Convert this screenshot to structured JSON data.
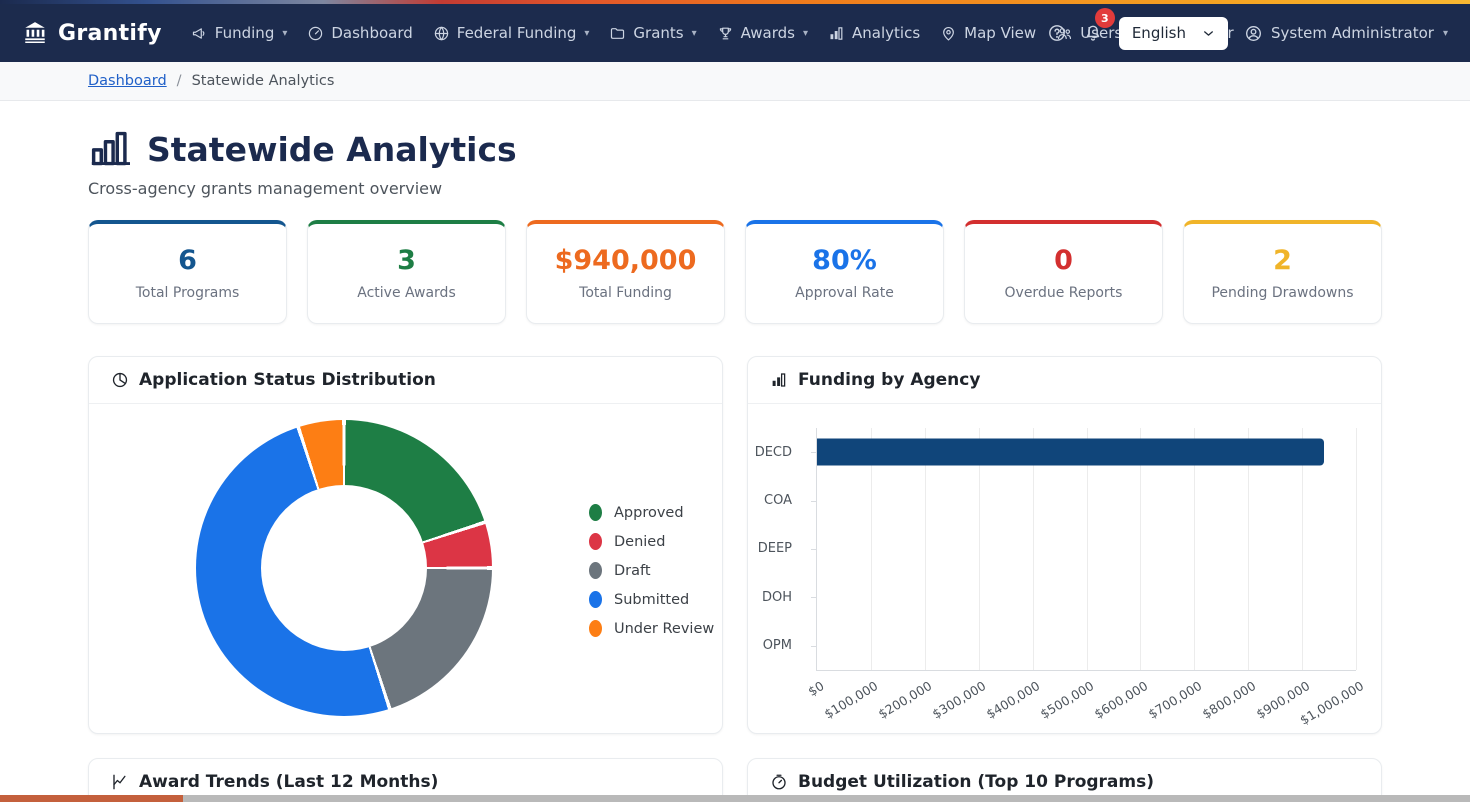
{
  "colors": {
    "navbar_bg": "#1c2b4d",
    "brand_navy": "#1b2a4e",
    "link_blue": "#2060c8",
    "badge_red": "#e23b3b",
    "bar_navy": "#10457a",
    "scroll_thumb": "#c4603c"
  },
  "topbar": {
    "brand": "Grantify",
    "nav": [
      {
        "label": "Funding",
        "icon": "megaphone-icon",
        "caret": true
      },
      {
        "label": "Dashboard",
        "icon": "speedometer-icon",
        "caret": false
      },
      {
        "label": "Federal Funding",
        "icon": "globe-icon",
        "caret": true
      },
      {
        "label": "Grants",
        "icon": "folder-icon",
        "caret": true
      },
      {
        "label": "Awards",
        "icon": "trophy-icon",
        "caret": true
      },
      {
        "label": "Analytics",
        "icon": "bar-chart-icon",
        "caret": false
      },
      {
        "label": "Map View",
        "icon": "map-pin-icon",
        "caret": false
      },
      {
        "label": "Users",
        "icon": "users-icon",
        "caret": false
      },
      {
        "label": "Calendar",
        "icon": "calendar-icon",
        "caret": false
      }
    ],
    "notification_count": "3",
    "language": "English",
    "user": "System Administrator"
  },
  "breadcrumb": {
    "items": [
      {
        "label": "Dashboard"
      },
      {
        "label": "Statewide Analytics"
      }
    ],
    "separator": "/"
  },
  "header": {
    "title": "Statewide Analytics",
    "subtitle": "Cross-agency grants management overview"
  },
  "stats": [
    {
      "value": "6",
      "label": "Total Programs",
      "color": "#14568f"
    },
    {
      "value": "3",
      "label": "Active Awards",
      "color": "#1e7e45"
    },
    {
      "value": "$940,000",
      "label": "Total Funding",
      "color": "#ed6a1f"
    },
    {
      "value": "80%",
      "label": "Approval Rate",
      "color": "#1a73e8"
    },
    {
      "value": "0",
      "label": "Overdue Reports",
      "color": "#d32f2f"
    },
    {
      "value": "2",
      "label": "Pending Drawdowns",
      "color": "#f0b429"
    }
  ],
  "cards": {
    "status": {
      "title": "Application Status Distribution"
    },
    "agency": {
      "title": "Funding by Agency"
    },
    "trends": {
      "title": "Award Trends (Last 12 Months)"
    },
    "budget": {
      "title": "Budget Utilization (Top 10 Programs)"
    }
  },
  "chart_data": [
    {
      "type": "pie",
      "donut": true,
      "title": "Application Status Distribution",
      "labels": [
        "Approved",
        "Denied",
        "Draft",
        "Submitted",
        "Under Review"
      ],
      "values": [
        4,
        1,
        4,
        10,
        1
      ],
      "percents": [
        20,
        5,
        20,
        50,
        5
      ],
      "colors": [
        "#1e7e45",
        "#dc3545",
        "#6c757d",
        "#1a73e8",
        "#fd7e14"
      ],
      "legend_position": "right"
    },
    {
      "type": "bar",
      "orientation": "horizontal",
      "title": "Funding by Agency",
      "categories": [
        "DECD",
        "COA",
        "DEEP",
        "DOH",
        "OPM"
      ],
      "values": [
        940000,
        0,
        0,
        0,
        0
      ],
      "bar_color": "#10457a",
      "xlim": [
        0,
        1000000
      ],
      "x_ticks": [
        "$0",
        "$100,000",
        "$200,000",
        "$300,000",
        "$400,000",
        "$500,000",
        "$600,000",
        "$700,000",
        "$800,000",
        "$900,000",
        "$1,000,000"
      ],
      "grid": true
    }
  ]
}
